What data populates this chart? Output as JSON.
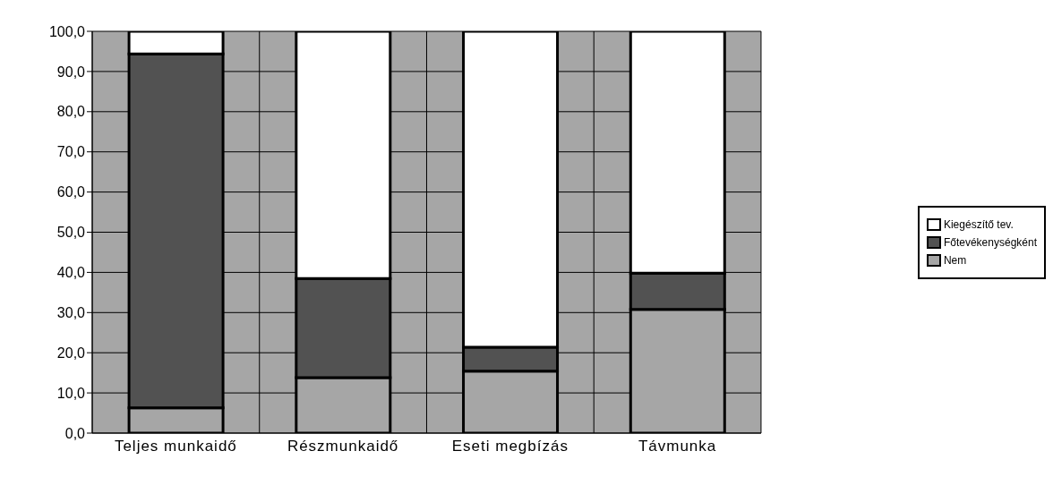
{
  "chart_data": {
    "type": "bar",
    "stacked": true,
    "categories": [
      "Teljes munkaidő",
      "Részmunkaidő",
      "Eseti megbízás",
      "Távmunka"
    ],
    "series": [
      {
        "name": "Nem",
        "color": "#a6a6a6",
        "values": [
          6.3,
          13.8,
          15.4,
          30.8
        ]
      },
      {
        "name": "Főtevékenységként",
        "color": "#525252",
        "values": [
          88.1,
          24.7,
          6.0,
          9.0
        ]
      },
      {
        "name": "Kiegészítő tev.",
        "color": "#ffffff",
        "values": [
          5.6,
          61.5,
          78.6,
          60.2
        ]
      }
    ],
    "ylim": [
      0,
      100
    ],
    "yticks": [
      {
        "value": 0,
        "label": "0,0"
      },
      {
        "value": 10,
        "label": "10,0"
      },
      {
        "value": 20,
        "label": "20,0"
      },
      {
        "value": 30,
        "label": "30,0"
      },
      {
        "value": 40,
        "label": "40,0"
      },
      {
        "value": 50,
        "label": "50,0"
      },
      {
        "value": 60,
        "label": "60,0"
      },
      {
        "value": 70,
        "label": "70,0"
      },
      {
        "value": 80,
        "label": "80,0"
      },
      {
        "value": 90,
        "label": "90,0"
      },
      {
        "value": 100,
        "label": "100,0"
      }
    ],
    "grid": true,
    "legend": "right"
  }
}
